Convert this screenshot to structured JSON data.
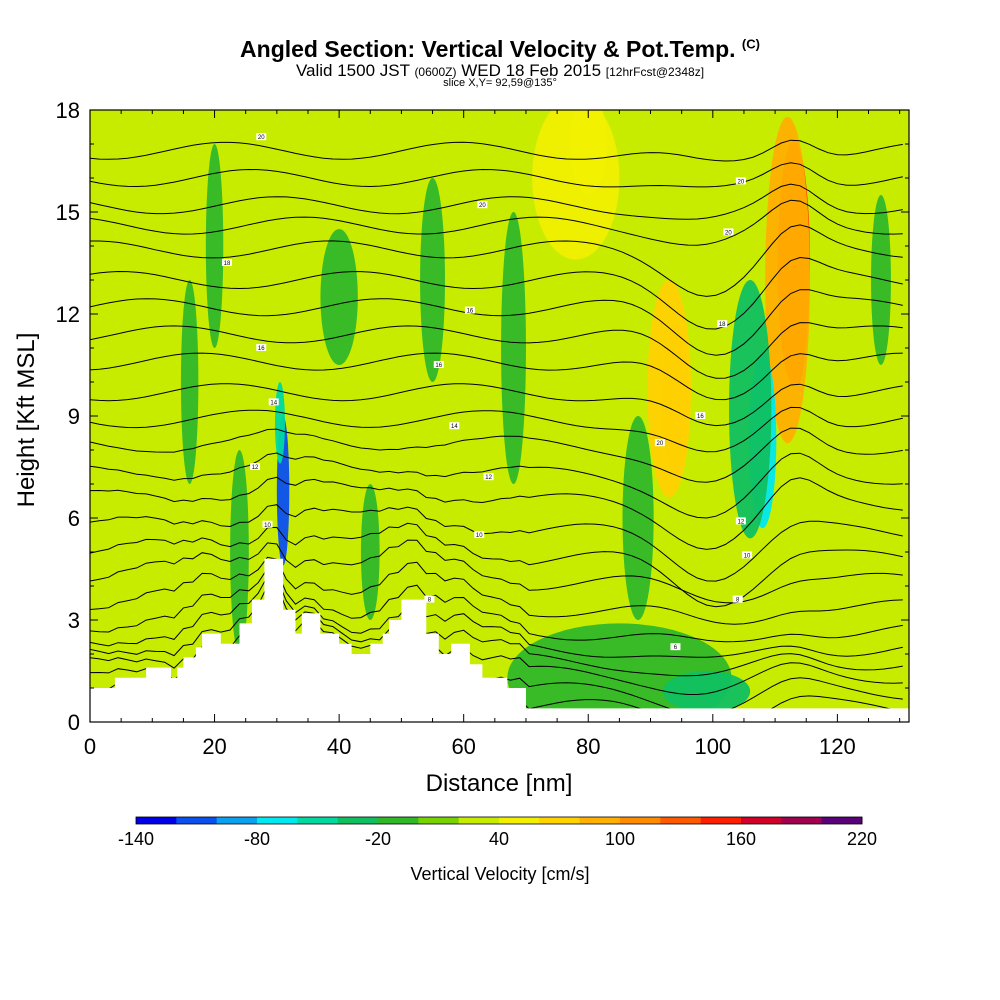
{
  "title": {
    "main": "Angled Section: Vertical Velocity & Pot.Temp.",
    "main_suffix": "(C)",
    "line2_a": "Valid 1500 JST",
    "line2_b": "(0600Z)",
    "line2_c": "WED 18 Feb 2015",
    "line2_d": "[12hrFcst@2348z]",
    "line3": "slice X,Y= 92,59@135°"
  },
  "chart_data": {
    "type": "heatmap",
    "xlabel": "Distance [nm]",
    "ylabel": "Height [Kft MSL]",
    "xlim": [
      0,
      131.5
    ],
    "ylim": [
      0,
      18
    ],
    "x_ticks": [
      0,
      20,
      40,
      60,
      80,
      100,
      120
    ],
    "y_ticks": [
      0,
      3,
      6,
      9,
      12,
      15,
      18
    ],
    "colorbar": {
      "title": "Vertical Velocity [cm/s]",
      "min": -140,
      "max": 220,
      "step": 20,
      "tick_values": [
        -140,
        -80,
        -20,
        40,
        100,
        160,
        220
      ],
      "tick_labels": [
        "-140",
        "-80",
        "-20",
        "40",
        "100",
        "160",
        "220"
      ],
      "colors": [
        "#0000e8",
        "#0a50f0",
        "#0aa0f0",
        "#00e8f0",
        "#00d9a0",
        "#10c060",
        "#30b828",
        "#78d200",
        "#c8ec00",
        "#f0f000",
        "#ffd200",
        "#ffb000",
        "#ff8c00",
        "#ff5a00",
        "#ff1e00",
        "#d20028",
        "#a00050",
        "#5a0078"
      ]
    },
    "terrain_profile": [
      [
        0,
        1
      ],
      [
        4,
        1
      ],
      [
        4,
        1.3
      ],
      [
        9,
        1.3
      ],
      [
        9,
        1.6
      ],
      [
        13,
        1.6
      ],
      [
        13,
        1.3
      ],
      [
        14,
        1.3
      ],
      [
        14,
        1.6
      ],
      [
        15,
        1.6
      ],
      [
        15,
        1.9
      ],
      [
        17,
        1.9
      ],
      [
        17,
        2.2
      ],
      [
        18,
        2.2
      ],
      [
        18,
        2.6
      ],
      [
        21,
        2.6
      ],
      [
        21,
        2.3
      ],
      [
        24,
        2.3
      ],
      [
        24,
        2.9
      ],
      [
        26,
        2.9
      ],
      [
        26,
        3.6
      ],
      [
        28,
        3.6
      ],
      [
        28,
        4.8
      ],
      [
        31,
        4.8
      ],
      [
        31,
        3.3
      ],
      [
        33,
        3.3
      ],
      [
        33,
        2.6
      ],
      [
        34,
        2.6
      ],
      [
        34,
        3.2
      ],
      [
        37,
        3.2
      ],
      [
        37,
        2.6
      ],
      [
        40,
        2.6
      ],
      [
        40,
        2.3
      ],
      [
        42,
        2.3
      ],
      [
        42,
        2.0
      ],
      [
        45,
        2.0
      ],
      [
        45,
        2.3
      ],
      [
        47,
        2.3
      ],
      [
        47,
        2.6
      ],
      [
        48,
        2.6
      ],
      [
        48,
        3.0
      ],
      [
        50,
        3.0
      ],
      [
        50,
        3.6
      ],
      [
        54,
        3.6
      ],
      [
        54,
        2.6
      ],
      [
        56,
        2.6
      ],
      [
        56,
        2.0
      ],
      [
        58,
        2.0
      ],
      [
        58,
        2.3
      ],
      [
        61,
        2.3
      ],
      [
        61,
        1.7
      ],
      [
        63,
        1.7
      ],
      [
        63,
        1.3
      ],
      [
        67,
        1.3
      ],
      [
        67,
        1.0
      ],
      [
        70,
        1.0
      ],
      [
        70,
        0.4
      ],
      [
        131.5,
        0.4
      ]
    ],
    "contour_labels": [
      {
        "x": 27.5,
        "y": 17.2,
        "text": "20"
      },
      {
        "x": 22,
        "y": 13.5,
        "text": "18"
      },
      {
        "x": 63,
        "y": 15.2,
        "text": "20"
      },
      {
        "x": 61,
        "y": 12.1,
        "text": "16"
      },
      {
        "x": 27.5,
        "y": 11.0,
        "text": "16"
      },
      {
        "x": 56,
        "y": 10.5,
        "text": "16"
      },
      {
        "x": 29.5,
        "y": 9.4,
        "text": "14"
      },
      {
        "x": 58.5,
        "y": 8.7,
        "text": "14"
      },
      {
        "x": 26.5,
        "y": 7.5,
        "text": "12"
      },
      {
        "x": 64,
        "y": 7.2,
        "text": "12"
      },
      {
        "x": 28.5,
        "y": 5.8,
        "text": "10"
      },
      {
        "x": 62.5,
        "y": 5.5,
        "text": "10"
      },
      {
        "x": 54.5,
        "y": 3.6,
        "text": "8"
      },
      {
        "x": 104.5,
        "y": 15.9,
        "text": "20"
      },
      {
        "x": 102.5,
        "y": 14.4,
        "text": "20"
      },
      {
        "x": 101.5,
        "y": 11.7,
        "text": "18"
      },
      {
        "x": 98,
        "y": 9.0,
        "text": "16"
      },
      {
        "x": 91.5,
        "y": 8.2,
        "text": "20"
      },
      {
        "x": 104.5,
        "y": 5.9,
        "text": "12"
      },
      {
        "x": 105.5,
        "y": 4.9,
        "text": "10"
      },
      {
        "x": 104,
        "y": 3.6,
        "text": "8"
      },
      {
        "x": 94,
        "y": 2.2,
        "text": "6"
      }
    ],
    "features": [
      {
        "x": 31,
        "y": 6.8,
        "rx": 1.0,
        "ry": 2.2,
        "v": -110
      },
      {
        "x": 30.5,
        "y": 8.8,
        "rx": 0.8,
        "ry": 1.2,
        "v": -60
      },
      {
        "x": 33,
        "y": 9.0,
        "rx": 1.2,
        "ry": 1.8,
        "v": 35
      },
      {
        "x": 113.5,
        "y": 12.2,
        "rx": 1.6,
        "ry": 2.3,
        "v": 190
      },
      {
        "x": 113,
        "y": 13.5,
        "rx": 2.6,
        "ry": 3.6,
        "v": 140
      },
      {
        "x": 112,
        "y": 13,
        "rx": 3.6,
        "ry": 4.8,
        "v": 80
      },
      {
        "x": 94,
        "y": 9.5,
        "rx": 2.2,
        "ry": 2.2,
        "v": 90
      },
      {
        "x": 93,
        "y": 9.8,
        "rx": 3.5,
        "ry": 3.2,
        "v": 60
      },
      {
        "x": 108,
        "y": 8.3,
        "rx": 2.2,
        "ry": 2.6,
        "v": -70
      },
      {
        "x": 106,
        "y": 9.2,
        "rx": 3.4,
        "ry": 3.8,
        "v": -35
      },
      {
        "x": 78,
        "y": 16,
        "rx": 7,
        "ry": 2.4,
        "v": 40
      },
      {
        "x": 80,
        "y": 17,
        "rx": 3,
        "ry": 1.5,
        "v": 55
      },
      {
        "x": 85,
        "y": 1.3,
        "rx": 18,
        "ry": 1.6,
        "v": -20
      },
      {
        "x": 99,
        "y": 0.9,
        "rx": 7,
        "ry": 0.6,
        "v": -35
      },
      {
        "x": 20,
        "y": 14,
        "rx": 1.4,
        "ry": 3,
        "v": -15
      },
      {
        "x": 40,
        "y": 12.5,
        "rx": 3,
        "ry": 2,
        "v": -15
      },
      {
        "x": 55,
        "y": 13,
        "rx": 2,
        "ry": 3,
        "v": -10
      },
      {
        "x": 68,
        "y": 11,
        "rx": 2,
        "ry": 4,
        "v": -20
      },
      {
        "x": 88,
        "y": 6,
        "rx": 2.5,
        "ry": 3,
        "v": -20
      },
      {
        "x": 126,
        "y": 7,
        "rx": 3,
        "ry": 3,
        "v": 30
      },
      {
        "x": 3,
        "y": 7,
        "rx": 2,
        "ry": 3,
        "v": 30
      },
      {
        "x": 62,
        "y": 10,
        "rx": 2,
        "ry": 3,
        "v": 30
      },
      {
        "x": 50,
        "y": 8.5,
        "rx": 2,
        "ry": 2,
        "v": 30
      },
      {
        "x": 13,
        "y": 3.3,
        "rx": 1.2,
        "ry": 2,
        "v": 30
      },
      {
        "x": 24,
        "y": 5,
        "rx": 1.5,
        "ry": 3,
        "v": -20
      },
      {
        "x": 127,
        "y": 13,
        "rx": 1.6,
        "ry": 2.5,
        "v": -20
      },
      {
        "x": 16,
        "y": 10,
        "rx": 1.4,
        "ry": 3,
        "v": -15
      },
      {
        "x": 45,
        "y": 5,
        "rx": 1.5,
        "ry": 2,
        "v": -10
      }
    ],
    "contour_levels": [
      -0.3,
      0.2,
      0.7,
      1.2,
      1.6,
      2.0,
      2.5,
      3.2,
      4.0,
      4.7,
      5.5,
      6.4,
      7.2,
      8.1,
      8.9,
      9.7,
      10.6,
      11.4,
      12.2,
      13.0,
      13.9,
      14.6,
      15.2,
      16.0,
      16.8
    ]
  }
}
